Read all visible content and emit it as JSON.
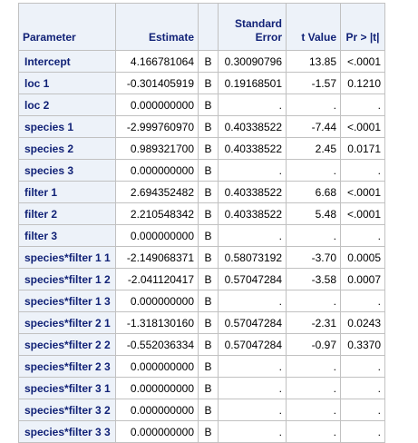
{
  "headers": {
    "parameter": "Parameter",
    "estimate": "Estimate",
    "flag": "",
    "stderr_line1": "Standard",
    "stderr_line2": "Error",
    "tvalue": "t Value",
    "pvalue": "Pr > |t|"
  },
  "rows": [
    {
      "param": "Intercept",
      "estimate": "4.166781064",
      "flag": "B",
      "se": "0.30090796",
      "t": "13.85",
      "p": "<.0001"
    },
    {
      "param": "loc 1",
      "estimate": "-0.301405919",
      "flag": "B",
      "se": "0.19168501",
      "t": "-1.57",
      "p": "0.1210"
    },
    {
      "param": "loc 2",
      "estimate": "0.000000000",
      "flag": "B",
      "se": ".",
      "t": ".",
      "p": "."
    },
    {
      "param": "species 1",
      "estimate": "-2.999760970",
      "flag": "B",
      "se": "0.40338522",
      "t": "-7.44",
      "p": "<.0001"
    },
    {
      "param": "species 2",
      "estimate": "0.989321700",
      "flag": "B",
      "se": "0.40338522",
      "t": "2.45",
      "p": "0.0171"
    },
    {
      "param": "species 3",
      "estimate": "0.000000000",
      "flag": "B",
      "se": ".",
      "t": ".",
      "p": "."
    },
    {
      "param": "filter 1",
      "estimate": "2.694352482",
      "flag": "B",
      "se": "0.40338522",
      "t": "6.68",
      "p": "<.0001"
    },
    {
      "param": "filter 2",
      "estimate": "2.210548342",
      "flag": "B",
      "se": "0.40338522",
      "t": "5.48",
      "p": "<.0001"
    },
    {
      "param": "filter 3",
      "estimate": "0.000000000",
      "flag": "B",
      "se": ".",
      "t": ".",
      "p": "."
    },
    {
      "param": "species*filter 1 1",
      "estimate": "-2.149068371",
      "flag": "B",
      "se": "0.58073192",
      "t": "-3.70",
      "p": "0.0005"
    },
    {
      "param": "species*filter 1 2",
      "estimate": "-2.041120417",
      "flag": "B",
      "se": "0.57047284",
      "t": "-3.58",
      "p": "0.0007"
    },
    {
      "param": "species*filter 1 3",
      "estimate": "0.000000000",
      "flag": "B",
      "se": ".",
      "t": ".",
      "p": "."
    },
    {
      "param": "species*filter 2 1",
      "estimate": "-1.318130160",
      "flag": "B",
      "se": "0.57047284",
      "t": "-2.31",
      "p": "0.0243"
    },
    {
      "param": "species*filter 2 2",
      "estimate": "-0.552036334",
      "flag": "B",
      "se": "0.57047284",
      "t": "-0.97",
      "p": "0.3370"
    },
    {
      "param": "species*filter 2 3",
      "estimate": "0.000000000",
      "flag": "B",
      "se": ".",
      "t": ".",
      "p": "."
    },
    {
      "param": "species*filter 3 1",
      "estimate": "0.000000000",
      "flag": "B",
      "se": ".",
      "t": ".",
      "p": "."
    },
    {
      "param": "species*filter 3 2",
      "estimate": "0.000000000",
      "flag": "B",
      "se": ".",
      "t": ".",
      "p": "."
    },
    {
      "param": "species*filter 3 3",
      "estimate": "0.000000000",
      "flag": "B",
      "se": ".",
      "t": ".",
      "p": "."
    }
  ],
  "colors": {
    "header_bg": "#edf2f9",
    "header_text": "#112277",
    "border": "#c1c1c1"
  }
}
